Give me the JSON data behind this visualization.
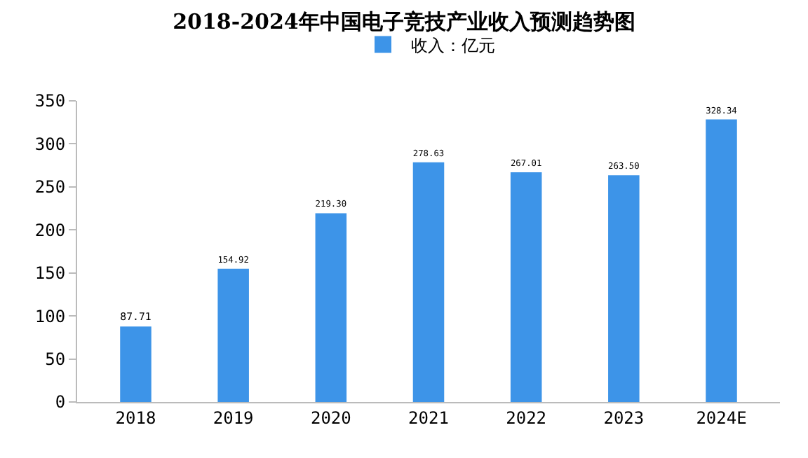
{
  "chart_data": {
    "type": "bar",
    "title": "2018-2024年中国电子竞技产业收入预测趋势图",
    "categories": [
      "2018",
      "2019",
      "2020",
      "2021",
      "2022",
      "2023",
      "2024E"
    ],
    "series": [
      {
        "name": "收入：亿元",
        "color": "#3d94e8",
        "values": [
          87.71,
          154.92,
          219.3,
          278.63,
          267.01,
          263.5,
          328.34
        ],
        "value_labels": [
          "87.71",
          "154.92",
          "219.30",
          "278.63",
          "267.01",
          "263.50",
          "328.34"
        ]
      }
    ],
    "ylim": [
      0,
      350
    ],
    "yticks": [
      0,
      50,
      100,
      150,
      200,
      250,
      300,
      350
    ],
    "grid": false,
    "legend": "top"
  }
}
